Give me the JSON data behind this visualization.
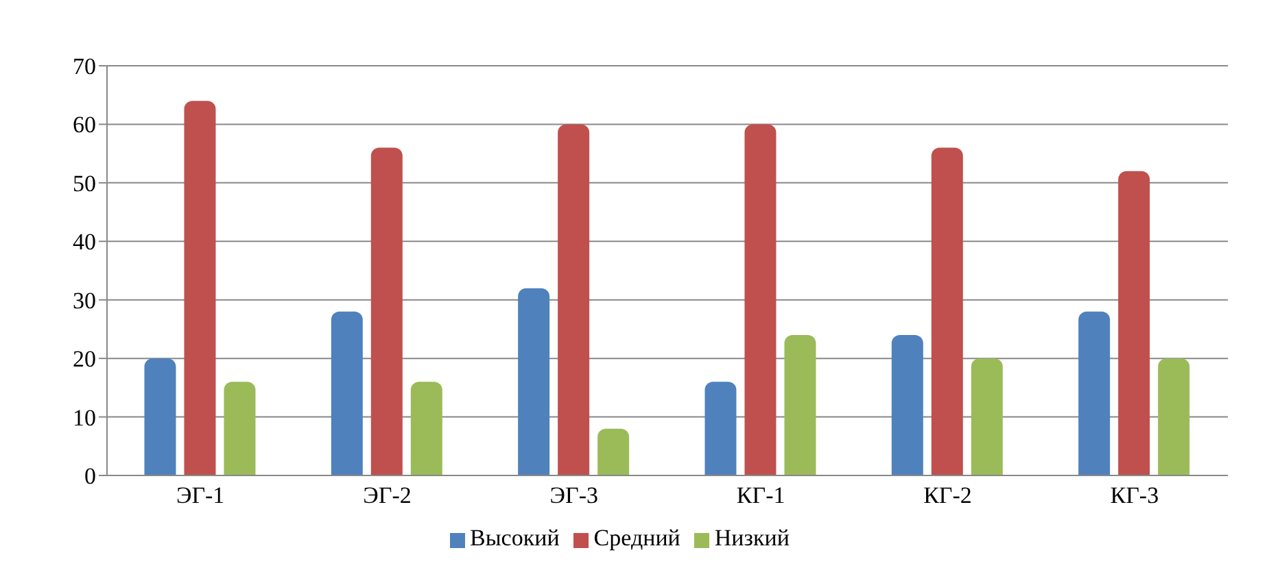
{
  "chart_data": {
    "type": "bar",
    "categories": [
      "ЭГ-1",
      "ЭГ-2",
      "ЭГ-3",
      "КГ-1",
      "КГ-2",
      "КГ-3"
    ],
    "series": [
      {
        "name": "Высокий",
        "color": "#4f81bd",
        "values": [
          20,
          28,
          32,
          16,
          24,
          28
        ]
      },
      {
        "name": "Средний",
        "color": "#c0504d",
        "values": [
          64,
          56,
          60,
          60,
          56,
          52
        ]
      },
      {
        "name": "Низкий",
        "color": "#9bbb59",
        "values": [
          16,
          16,
          8,
          24,
          20,
          20
        ]
      }
    ],
    "ylim": [
      0,
      70
    ],
    "yticks": [
      0,
      10,
      20,
      30,
      40,
      50,
      60,
      70
    ],
    "grid": "y",
    "legend": "bottom"
  }
}
